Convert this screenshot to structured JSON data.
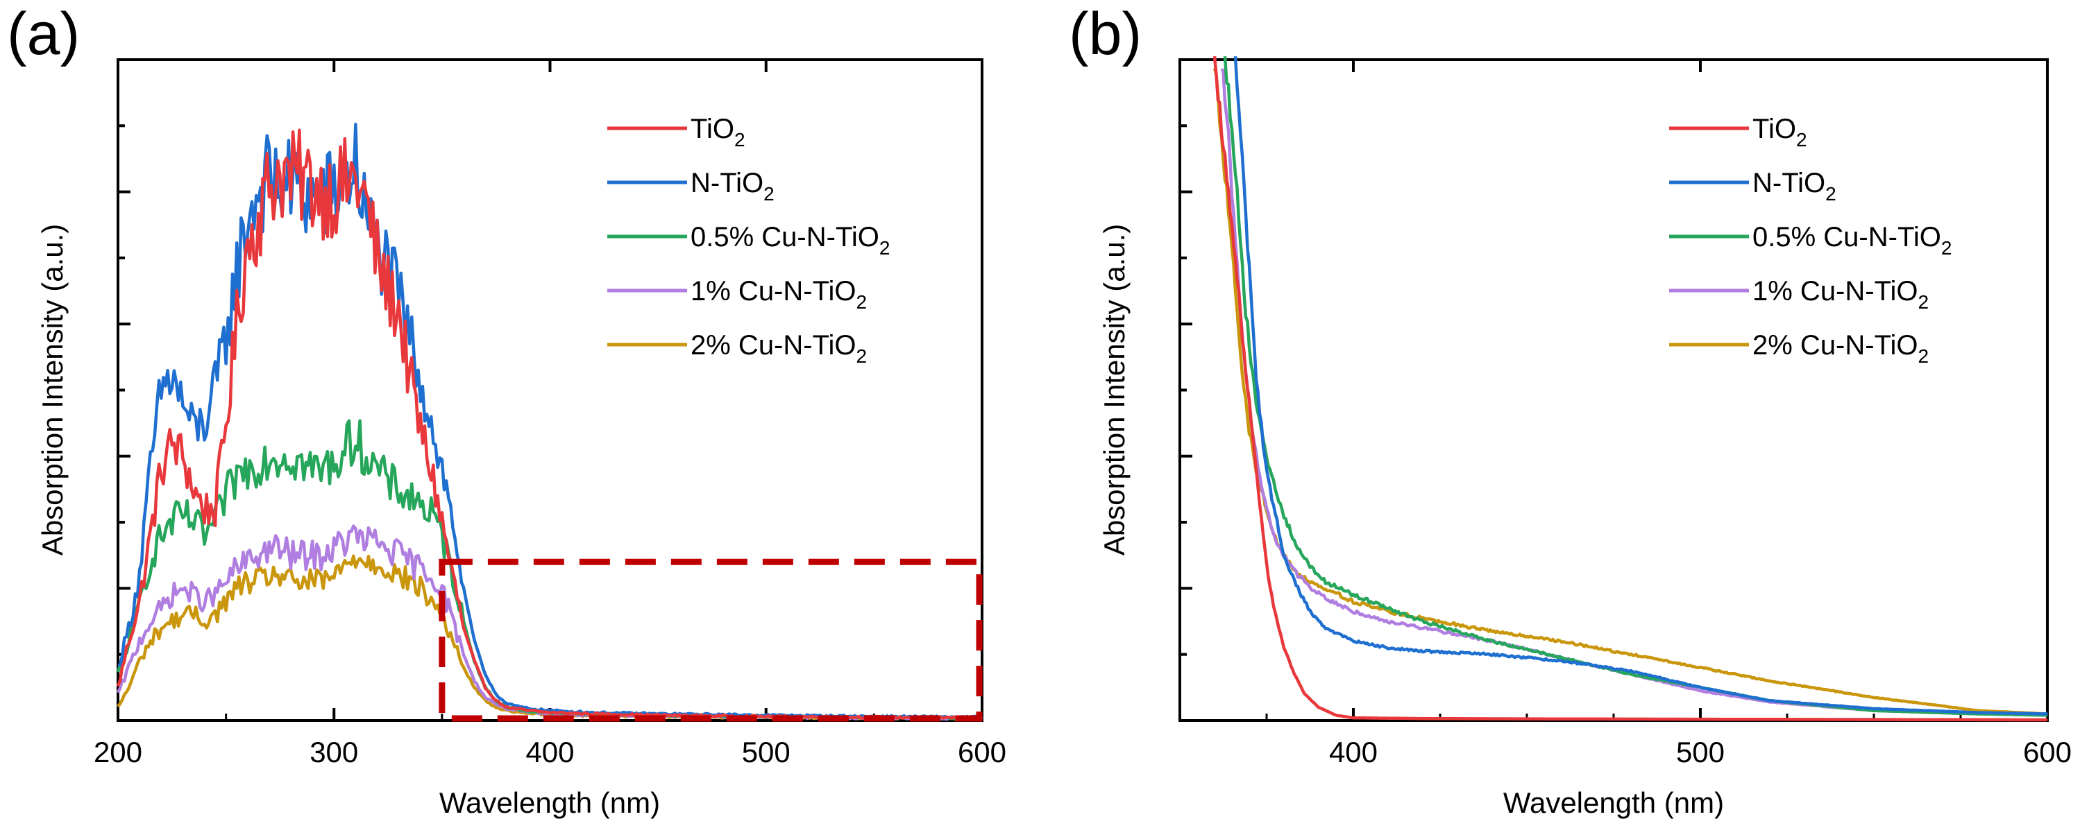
{
  "figure": {
    "series_colors": {
      "TiO2": "#e8383c",
      "N-TiO2": "#1e6fd0",
      "0.5% Cu-N-TiO2": "#26a65b",
      "1% Cu-N-TiO2": "#b07ee0",
      "2% Cu-N-TiO2": "#c9960c"
    },
    "highlight_box_color": "#c00000"
  },
  "chart_data": [
    {
      "type": "line",
      "panel_label": "(a)",
      "title": "",
      "xlabel": "Wavelength (nm)",
      "ylabel": "Absorption Intensity (a.u.)",
      "xlim": [
        200,
        600
      ],
      "ylim": [
        0,
        100
      ],
      "x_ticks": [
        "200",
        "300",
        "400",
        "500",
        "600"
      ],
      "y_ticks_labeled": false,
      "legend_position": "top-right",
      "legend": [
        {
          "main": "TiO",
          "sub": "2"
        },
        {
          "main": "N-TiO",
          "sub": "2"
        },
        {
          "main": "0.5% Cu-N-TiO",
          "sub": "2"
        },
        {
          "main": "1% Cu-N-TiO",
          "sub": "2"
        },
        {
          "main": "2% Cu-N-TiO",
          "sub": "2"
        }
      ],
      "annotation": {
        "type": "dashed-rectangle",
        "x_range": [
          350,
          600
        ],
        "y_range": [
          0,
          24
        ]
      },
      "series": [
        {
          "name": "TiO2",
          "x": [
            200,
            205,
            210,
            215,
            220,
            225,
            230,
            235,
            240,
            245,
            250,
            255,
            260,
            265,
            270,
            275,
            280,
            285,
            290,
            295,
            300,
            305,
            310,
            315,
            320,
            325,
            330,
            335,
            340,
            345,
            350,
            355,
            360,
            365,
            370,
            375,
            380,
            390,
            400,
            420,
            450,
            500,
            550,
            600
          ],
          "y": [
            5,
            12,
            18,
            28,
            38,
            42,
            40,
            35,
            32,
            32,
            45,
            60,
            72,
            76,
            81,
            83,
            82,
            82,
            81,
            80,
            80,
            81,
            82,
            78,
            70,
            65,
            62,
            52,
            44,
            38,
            30,
            22,
            14,
            9,
            5,
            3,
            2,
            1.5,
            1.2,
            1.0,
            0.8,
            0.6,
            0.5,
            0.4
          ]
        },
        {
          "name": "N-TiO2",
          "x": [
            200,
            205,
            210,
            215,
            220,
            225,
            230,
            235,
            240,
            245,
            250,
            255,
            260,
            265,
            270,
            275,
            280,
            285,
            290,
            295,
            300,
            305,
            310,
            315,
            320,
            325,
            330,
            335,
            340,
            345,
            350,
            355,
            360,
            365,
            370,
            375,
            380,
            390,
            400,
            420,
            450,
            500,
            550,
            600
          ],
          "y": [
            8,
            14,
            22,
            38,
            50,
            52,
            48,
            44,
            45,
            50,
            58,
            68,
            76,
            80,
            82,
            81,
            81,
            80,
            79,
            79,
            80,
            82,
            84,
            76,
            72,
            68,
            64,
            58,
            52,
            45,
            38,
            30,
            20,
            12,
            7,
            4,
            2.5,
            1.8,
            1.5,
            1.2,
            1.0,
            0.8,
            0.6,
            0.5
          ]
        },
        {
          "name": "0.5% Cu-N-TiO2",
          "x": [
            200,
            205,
            210,
            215,
            220,
            225,
            230,
            235,
            240,
            245,
            250,
            255,
            260,
            265,
            270,
            275,
            280,
            285,
            290,
            295,
            300,
            305,
            310,
            315,
            320,
            325,
            330,
            335,
            340,
            345,
            350,
            355,
            360,
            365,
            370,
            375,
            380,
            390,
            400,
            420,
            450,
            500,
            550,
            600
          ],
          "y": [
            7,
            12,
            18,
            24,
            28,
            30,
            31,
            30,
            28,
            30,
            34,
            37,
            38,
            39,
            40,
            40,
            40,
            39,
            38,
            38,
            39,
            41,
            43,
            40,
            38,
            36,
            35,
            34,
            33,
            31,
            28,
            22,
            15,
            9,
            5,
            3,
            2,
            1.4,
            1.2,
            1.0,
            0.8,
            0.6,
            0.5,
            0.4
          ]
        },
        {
          "name": "1% Cu-N-TiO2",
          "x": [
            200,
            205,
            210,
            215,
            220,
            225,
            230,
            235,
            240,
            245,
            250,
            255,
            260,
            265,
            270,
            275,
            280,
            285,
            290,
            295,
            300,
            305,
            310,
            315,
            320,
            325,
            330,
            335,
            340,
            345,
            350,
            355,
            360,
            365,
            370,
            375,
            380,
            390,
            400,
            420,
            450,
            500,
            550,
            600
          ],
          "y": [
            4,
            8,
            12,
            15,
            17,
            19,
            20,
            19,
            18,
            19,
            21,
            23,
            24,
            25,
            26,
            26,
            25,
            25,
            25,
            25,
            26,
            27,
            28,
            27,
            27,
            26,
            25,
            24,
            23,
            22,
            20,
            15,
            10,
            6,
            3.5,
            2.5,
            1.8,
            1.2,
            1.0,
            0.8,
            0.7,
            0.5,
            0.4,
            0.3
          ]
        },
        {
          "name": "2% Cu-N-TiO2",
          "x": [
            200,
            205,
            210,
            215,
            220,
            225,
            230,
            235,
            240,
            245,
            250,
            255,
            260,
            265,
            270,
            275,
            280,
            285,
            290,
            295,
            300,
            305,
            310,
            315,
            320,
            325,
            330,
            335,
            340,
            345,
            350,
            355,
            360,
            365,
            370,
            375,
            380,
            390,
            400,
            420,
            450,
            500,
            550,
            600
          ],
          "y": [
            2,
            5,
            9,
            12,
            14,
            15,
            16,
            16,
            15,
            16,
            18,
            20,
            21,
            21,
            22,
            22,
            21,
            21,
            21,
            21,
            22,
            23,
            25,
            24,
            24,
            23,
            22,
            21,
            20,
            18,
            16,
            12,
            8,
            5,
            3,
            2,
            1.5,
            1.1,
            0.9,
            0.7,
            0.6,
            0.5,
            0.4,
            0.3
          ]
        }
      ]
    },
    {
      "type": "line",
      "panel_label": "(b)",
      "title": "",
      "xlabel": "Wavelength (nm)",
      "ylabel": "Absorption Intensity (a.u.)",
      "xlim": [
        350,
        600
      ],
      "ylim": [
        0,
        100
      ],
      "x_ticks": [
        "400",
        "500",
        "600"
      ],
      "y_ticks_labeled": false,
      "legend_position": "top-right",
      "legend": [
        {
          "main": "TiO",
          "sub": "2"
        },
        {
          "main": "N-TiO",
          "sub": "2"
        },
        {
          "main": "0.5% Cu-N-TiO",
          "sub": "2"
        },
        {
          "main": "1% Cu-N-TiO",
          "sub": "2"
        },
        {
          "main": "2% Cu-N-TiO",
          "sub": "2"
        }
      ],
      "series": [
        {
          "name": "TiO2",
          "x": [
            360,
            362,
            364,
            366,
            368,
            370,
            372,
            374,
            376,
            378,
            380,
            383,
            386,
            390,
            395,
            400,
            420,
            450,
            500,
            550,
            600
          ],
          "y": [
            100,
            90,
            80,
            70,
            58,
            48,
            38,
            28,
            20,
            15,
            11,
            7,
            4,
            2,
            0.8,
            0.4,
            0.3,
            0.25,
            0.2,
            0.15,
            0.1
          ]
        },
        {
          "name": "N-TiO2",
          "x": [
            366,
            368,
            370,
            372,
            374,
            376,
            378,
            380,
            384,
            388,
            392,
            396,
            400,
            410,
            420,
            440,
            460,
            480,
            500,
            520,
            550,
            580,
            600
          ],
          "y": [
            100,
            85,
            68,
            52,
            42,
            35,
            30,
            25,
            20,
            16,
            14,
            13,
            12,
            11,
            10.5,
            10,
            9,
            7.5,
            5,
            3,
            1.8,
            1.2,
            1
          ]
        },
        {
          "name": "0.5% Cu-N-TiO2",
          "x": [
            363,
            365,
            367,
            369,
            371,
            373,
            375,
            377,
            380,
            384,
            388,
            392,
            396,
            400,
            410,
            420,
            440,
            460,
            480,
            500,
            520,
            550,
            580,
            600
          ],
          "y": [
            100,
            90,
            76,
            62,
            52,
            45,
            40,
            36,
            31,
            26,
            23,
            21,
            20,
            19,
            17,
            15,
            12,
            9.5,
            7,
            5,
            3,
            1.5,
            1,
            0.8
          ]
        },
        {
          "name": "1% Cu-N-TiO2",
          "x": [
            362,
            364,
            366,
            368,
            370,
            372,
            374,
            376,
            378,
            380,
            384,
            388,
            392,
            396,
            400,
            410,
            420,
            440,
            460,
            480,
            500,
            520,
            550,
            580,
            600
          ],
          "y": [
            100,
            88,
            72,
            58,
            48,
            40,
            34,
            30,
            27,
            25,
            22,
            20,
            18.5,
            17.5,
            16.5,
            15,
            14,
            12,
            9.5,
            7,
            4.5,
            2.8,
            1.5,
            1,
            0.8
          ]
        },
        {
          "name": "2% Cu-N-TiO2",
          "x": [
            360,
            362,
            364,
            366,
            368,
            370,
            372,
            374,
            376,
            378,
            380,
            384,
            388,
            392,
            396,
            400,
            410,
            420,
            440,
            460,
            480,
            500,
            520,
            550,
            580,
            600
          ],
          "y": [
            100,
            88,
            78,
            65,
            52,
            44,
            38,
            34,
            30,
            27,
            25,
            22,
            21,
            20,
            19,
            18,
            16.5,
            15.5,
            13.5,
            12,
            10,
            8,
            6,
            3.5,
            1.5,
            1
          ]
        }
      ]
    }
  ]
}
